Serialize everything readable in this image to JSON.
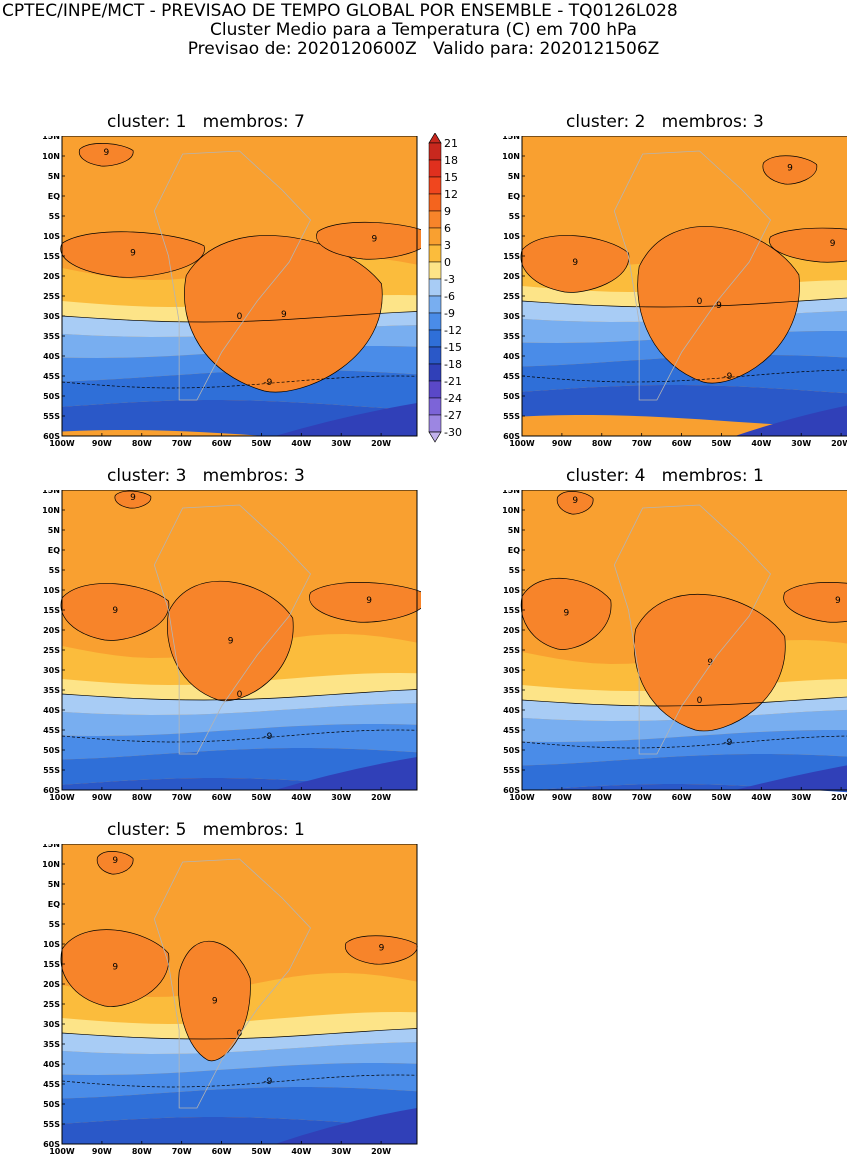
{
  "header": {
    "line1": "CPTEC/INPE/MCT - PREVISAO DE TEMPO GLOBAL POR ENSEMBLE - TQ0126L028",
    "line2": "Cluster Medio para a Temperatura (C) em 700 hPa",
    "line3": "Previsao de: 2020120600Z   Valido para: 2020121506Z"
  },
  "panels": [
    {
      "title": "cluster: 1   membros: 7"
    },
    {
      "title": "cluster: 2   membros: 3"
    },
    {
      "title": "cluster: 3   membros: 3"
    },
    {
      "title": "cluster: 4   membros: 1"
    },
    {
      "title": "cluster: 5   membros: 1"
    }
  ],
  "axes": {
    "lat_labels": [
      "15N",
      "10N",
      "5N",
      "EQ",
      "5S",
      "10S",
      "15S",
      "20S",
      "25S",
      "30S",
      "35S",
      "40S",
      "45S",
      "50S",
      "55S",
      "60S"
    ],
    "lon_labels": [
      "100W",
      "90W",
      "80W",
      "70W",
      "60W",
      "50W",
      "40W",
      "30W",
      "20W"
    ]
  },
  "contour_labels": {
    "warm": "9",
    "zero": "0",
    "cold": "-9"
  },
  "colorbar": {
    "levels": [
      "21",
      "18",
      "15",
      "12",
      "9",
      "6",
      "3",
      "0",
      "-3",
      "-6",
      "-9",
      "-12",
      "-15",
      "-18",
      "-21",
      "-24",
      "-27",
      "-30"
    ],
    "colors": [
      "#c8281e",
      "#e0301e",
      "#f0461e",
      "#f4641e",
      "#f7842a",
      "#f9a030",
      "#fbbc3c",
      "#fde488",
      "#a8ccf5",
      "#78aef0",
      "#4a8ce8",
      "#2f6fd8",
      "#2a58c8",
      "#3040b8",
      "#5a48c8",
      "#7c64d8",
      "#9c86e2",
      "#c2b2ec"
    ]
  },
  "chart_data": {
    "type": "heatmap",
    "variable": "Temperature (C) at 700 hPa",
    "lat_range": [
      "60S",
      "15N"
    ],
    "lon_range": [
      "100W",
      "20W"
    ]
  }
}
